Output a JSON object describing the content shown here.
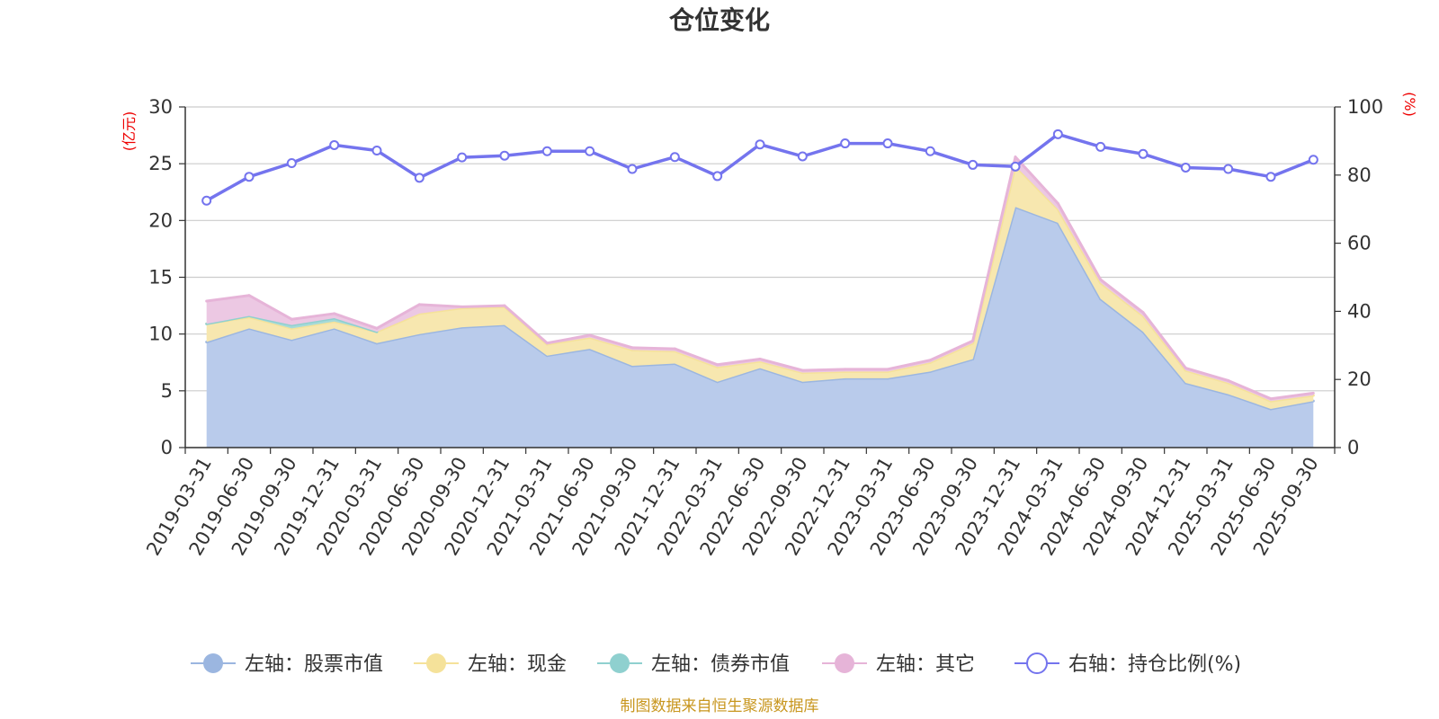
{
  "chart_data": {
    "type": "area",
    "title": "仓位变化",
    "source": "制图数据来自恒生聚源数据库",
    "left_axis": {
      "unit": "(亿元)",
      "range": [
        0,
        30
      ],
      "ticks": [
        0,
        5,
        10,
        15,
        20,
        25,
        30
      ]
    },
    "right_axis": {
      "unit": "(%)",
      "range": [
        0,
        100
      ],
      "ticks": [
        0,
        20,
        40,
        60,
        80,
        100
      ]
    },
    "grid": true,
    "legend_position": "bottom",
    "categories": [
      "2019-03-31",
      "2019-06-30",
      "2019-09-30",
      "2019-12-31",
      "2020-03-31",
      "2020-06-30",
      "2020-09-30",
      "2020-12-31",
      "2021-03-31",
      "2021-06-30",
      "2021-09-30",
      "2021-12-31",
      "2022-03-31",
      "2022-06-30",
      "2022-09-30",
      "2022-12-31",
      "2023-03-31",
      "2023-06-30",
      "2023-09-30",
      "2023-12-31",
      "2024-03-31",
      "2024-06-30",
      "2024-09-30",
      "2024-12-31",
      "2025-03-31",
      "2025-06-30",
      "2025-09-30"
    ],
    "series": [
      {
        "name": "左轴：股票市值",
        "axis": "left",
        "stack": true,
        "color": "#9bb6e0",
        "fill": "#b9cbeb",
        "values": [
          9.3,
          10.5,
          9.5,
          10.5,
          9.2,
          10.0,
          10.6,
          10.8,
          8.1,
          8.7,
          7.2,
          7.4,
          5.8,
          7.0,
          5.8,
          6.1,
          6.1,
          6.7,
          7.8,
          21.2,
          19.8,
          13.1,
          10.2,
          5.7,
          4.7,
          3.4,
          4.1
        ]
      },
      {
        "name": "左轴：现金",
        "axis": "left",
        "stack": true,
        "color": "#f5e29a",
        "fill": "#f7e7af",
        "values": [
          1.6,
          1.0,
          1.0,
          0.6,
          1.0,
          1.8,
          1.7,
          1.6,
          1.0,
          1.0,
          1.4,
          1.1,
          1.3,
          0.6,
          0.8,
          0.6,
          0.6,
          0.8,
          1.4,
          3.6,
          1.2,
          1.4,
          1.4,
          1.1,
          1.0,
          0.7,
          0.5
        ]
      },
      {
        "name": "左轴：债券市值",
        "axis": "left",
        "stack": true,
        "color": "#8fd0cf",
        "fill": "#a6dad8",
        "values": [
          0,
          0.1,
          0.3,
          0.3,
          0,
          0,
          0,
          0,
          0,
          0,
          0,
          0,
          0,
          0,
          0,
          0,
          0,
          0,
          0,
          0,
          0,
          0,
          0,
          0,
          0,
          0,
          0
        ]
      },
      {
        "name": "左轴：其它",
        "axis": "left",
        "stack": true,
        "color": "#e6b4d8",
        "fill": "#ecc8e3",
        "values": [
          2.0,
          1.8,
          0.5,
          0.4,
          0.3,
          0.8,
          0.1,
          0.1,
          0.1,
          0.2,
          0.2,
          0.2,
          0.2,
          0.2,
          0.2,
          0.2,
          0.2,
          0.2,
          0.2,
          0.8,
          0.5,
          0.3,
          0.3,
          0.2,
          0.2,
          0.2,
          0.2
        ]
      },
      {
        "name": "右轴：持仓比例(%)",
        "axis": "right",
        "type": "line",
        "color": "#7474ee",
        "values": [
          72.5,
          79.5,
          83.5,
          88.8,
          87.2,
          79.2,
          85.2,
          85.7,
          87.0,
          87.0,
          81.8,
          85.3,
          79.7,
          89.0,
          85.5,
          89.3,
          89.3,
          87.0,
          83.0,
          82.5,
          92.0,
          88.3,
          86.2,
          82.2,
          81.8,
          79.5,
          84.5
        ]
      }
    ]
  }
}
